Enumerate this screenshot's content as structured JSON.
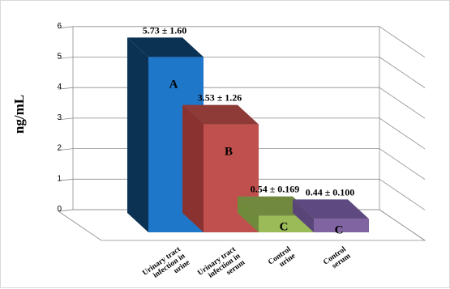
{
  "chart_data": {
    "type": "bar",
    "ylabel": "ng/mL",
    "ylim": [
      0,
      6
    ],
    "y_ticks": [
      0,
      1,
      2,
      3,
      4,
      5,
      6
    ],
    "grid": true,
    "categories": [
      "Urinary tract infection in urine",
      "Urinary tract infection in serum",
      "Control urine",
      "Control serum"
    ],
    "category_lines": [
      [
        "Urinary tract",
        "infection in",
        "urine"
      ],
      [
        "Urinary tract",
        "infection in",
        "serum"
      ],
      [
        "Control",
        "urine"
      ],
      [
        "Control",
        "serum"
      ]
    ],
    "values": [
      5.73,
      3.53,
      0.54,
      0.44
    ],
    "data_labels": [
      "5.73 ± 1.60",
      "3.53 ± 1.26",
      "0.54 ± 0.169",
      "0.44 ± 0.100"
    ],
    "group_letters": [
      "A",
      "B",
      "C",
      "C"
    ],
    "colors": [
      {
        "front": "#1f77c9",
        "side": "#0b3253",
        "top": "#0b3253"
      },
      {
        "front": "#c0504d",
        "side": "#8a3230",
        "top": "#8e3a36"
      },
      {
        "front": "#9bbb59",
        "side": "#6f8a3b",
        "top": "#71893f"
      },
      {
        "front": "#8064a2",
        "side": "#5a4578",
        "top": "#5e4a80"
      }
    ]
  }
}
